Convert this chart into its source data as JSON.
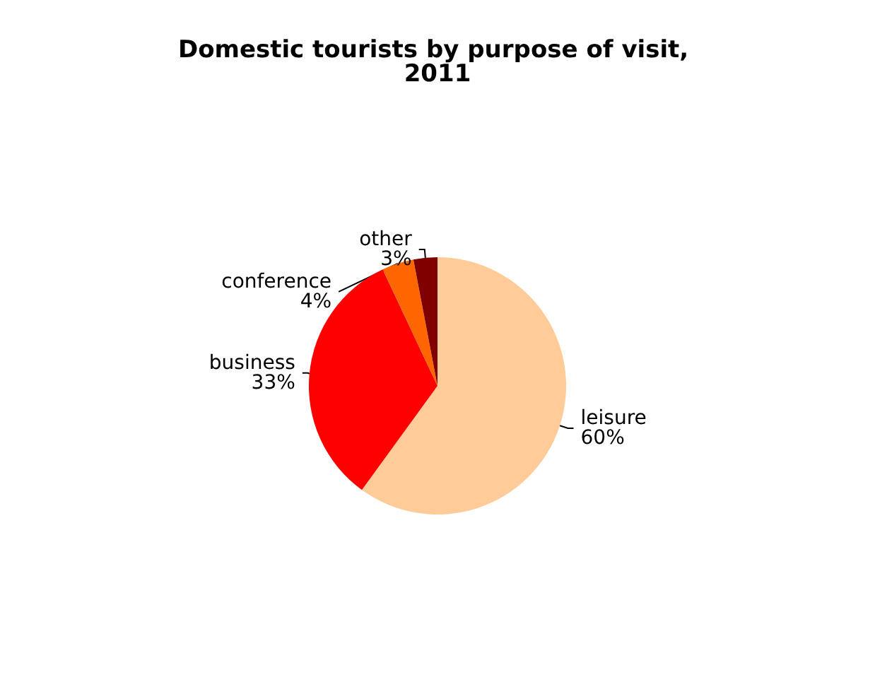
{
  "chart_data": {
    "type": "pie",
    "title": "Domestic tourists by purpose of visit, 2011",
    "categories": [
      "leisure",
      "business",
      "conference",
      "other"
    ],
    "values": [
      60,
      33,
      4,
      3
    ],
    "colors": [
      "#ffcc99",
      "#ff0000",
      "#ff6600",
      "#800000"
    ],
    "value_labels": [
      "60%",
      "33%",
      "4%",
      "3%"
    ],
    "legend": false
  }
}
